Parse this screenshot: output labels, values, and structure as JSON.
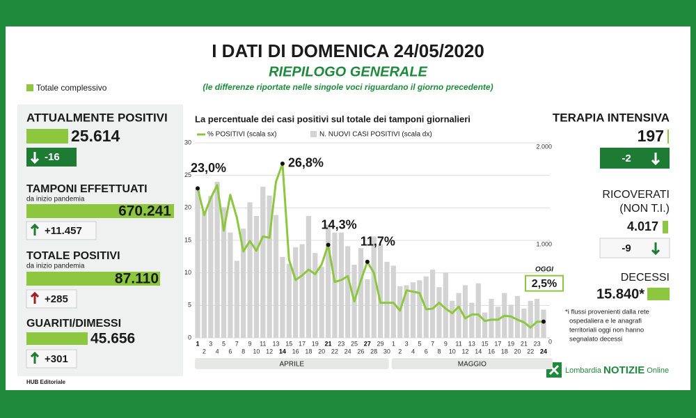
{
  "header": {
    "title": "I DATI DI DOMENICA 24/05/2020",
    "subtitle": "RIEPILOGO GENERALE",
    "note": "(le differenze riportate nelle singole voci riguardano il giorno precedente)"
  },
  "legend": "Totale complessivo",
  "panels": {
    "positivi": {
      "title": "ATTUALMENTE POSITIVI",
      "total": "25.614",
      "change": "-16"
    },
    "tamponi": {
      "title": "TAMPONI EFFETTUATI",
      "subtitle": "da inizio pandemia",
      "total": "670.241",
      "change": "+11.457"
    },
    "totale_positivi": {
      "title": "TOTALE POSITIVI",
      "subtitle": "da inizio pandemia",
      "total": "87.110",
      "change": "+285"
    },
    "guariti": {
      "title": "GUARITI/DIMESSI",
      "total": "45.656",
      "change": "+301"
    },
    "terapia": {
      "title": "TERAPIA INTENSIVA",
      "total": "197",
      "change": "-2"
    },
    "ricoverati": {
      "title": "RICOVERATI",
      "subtitle": "(NON T.I.)",
      "total": "4.017",
      "change": "-9"
    },
    "decessi": {
      "title": "DECESSI",
      "total": "15.840*"
    }
  },
  "footnote": [
    "*i flussi provenienti dalla rete",
    "ospedaliera e le anagrafi",
    "territoriali oggi non hanno",
    "segnalato decessi"
  ],
  "credit": "HUB Editoriale",
  "logo": {
    "brand": "Lombardia",
    "name": "NOTIZIE",
    "suffix": "Online"
  },
  "chart_data": {
    "type": "combo",
    "title": "La percentuale dei casi positivi sul totale dei tamponi giornalieri",
    "categories": [
      "1",
      "2",
      "3",
      "4",
      "5",
      "6",
      "7",
      "8",
      "9",
      "10",
      "11",
      "12",
      "13",
      "14",
      "15",
      "16",
      "17",
      "18",
      "19",
      "20",
      "21",
      "22",
      "23",
      "24",
      "25",
      "26",
      "27",
      "28",
      "29",
      "30",
      "1",
      "2",
      "3",
      "4",
      "5",
      "6",
      "7",
      "8",
      "9",
      "10",
      "11",
      "12",
      "13",
      "14",
      "15",
      "16",
      "17",
      "18",
      "19",
      "20",
      "21",
      "22",
      "23",
      "24"
    ],
    "months": [
      "APRILE",
      "MAGGIO"
    ],
    "series": [
      {
        "name": "% POSITIVI (scala sx)",
        "color": "#8dc63f",
        "values": [
          23.0,
          18.9,
          21.5,
          23.5,
          16.5,
          22.0,
          18.5,
          13.3,
          14.9,
          13.4,
          15.6,
          15.4,
          24.0,
          26.8,
          12.0,
          8.9,
          9.6,
          10.5,
          9.8,
          11.3,
          14.3,
          8.6,
          8.9,
          9.5,
          5.6,
          8.8,
          11.7,
          10.0,
          5.4,
          5.4,
          5.4,
          4.2,
          7.3,
          7.1,
          6.9,
          4.4,
          4.5,
          5.4,
          4.5,
          3.8,
          4.8,
          3.0,
          3.6,
          3.6,
          2.6,
          2.8,
          2.8,
          3.4,
          3.3,
          2.8,
          2.4,
          1.6,
          2.5,
          2.5
        ],
        "value_labels": [
          "23,0%",
          null,
          null,
          null,
          null,
          null,
          null,
          null,
          null,
          null,
          null,
          null,
          null,
          "26,8%",
          null,
          null,
          null,
          null,
          null,
          null,
          "14,3%",
          null,
          null,
          null,
          null,
          null,
          "11,7%",
          null,
          null,
          null,
          null,
          null,
          null,
          null,
          null,
          null,
          null,
          null,
          null,
          null,
          null,
          null,
          null,
          null,
          null,
          null,
          null,
          null,
          null,
          null,
          null,
          null,
          null,
          "2,5%"
        ]
      },
      {
        "name": "N. NUOVI CASI POSITIVI (scala dx)",
        "color": "#d3d3d3",
        "axis": "y2",
        "values": [
          1530,
          1290,
          1455,
          1600,
          1340,
          1080,
          790,
          1120,
          1390,
          1250,
          1550,
          1460,
          1260,
          830,
          760,
          930,
          960,
          1250,
          870,
          730,
          1160,
          1080,
          1080,
          940,
          750,
          920,
          600,
          1040,
          960,
          780,
          740,
          530,
          540,
          570,
          590,
          630,
          700,
          520,
          670,
          380,
          460,
          540,
          360,
          560,
          260,
          400,
          320,
          460,
          340,
          430,
          300,
          380,
          400,
          290
        ]
      }
    ],
    "annotation": "OGGI",
    "ylim": [
      0,
      30
    ],
    "yticks": [
      0,
      5,
      10,
      15,
      20,
      25,
      30
    ],
    "y2lim": [
      0,
      2000
    ],
    "y2ticks": [
      0,
      {
        "value": 1000,
        "label": "1.000"
      },
      {
        "value": 2000,
        "label": "2.000"
      }
    ],
    "grid": true
  }
}
